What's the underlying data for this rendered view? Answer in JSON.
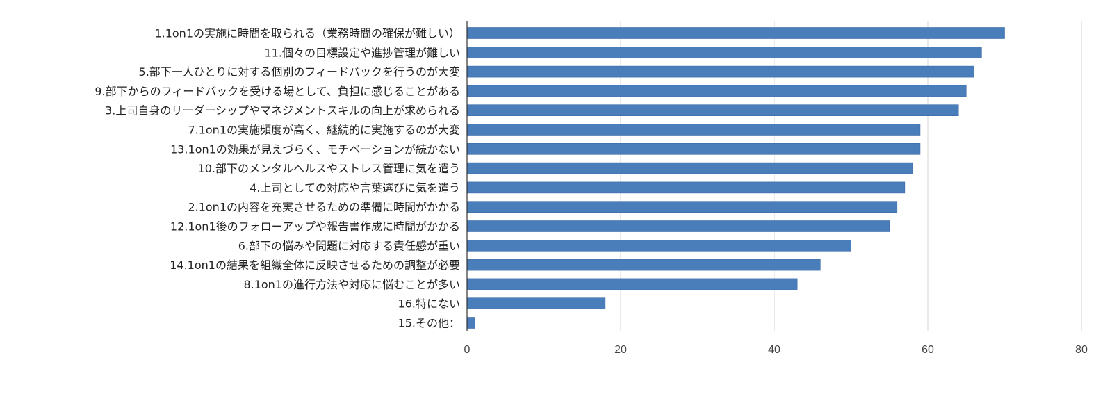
{
  "chart_data": {
    "type": "bar",
    "orientation": "horizontal",
    "categories": [
      "1.1on1の実施に時間を取られる（業務時間の確保が難しい）",
      "11.個々の目標設定や進捗管理が難しい",
      "5.部下一人ひとりに対する個別のフィードバックを行うのが大変",
      "9.部下からのフィードバックを受ける場として、負担に感じることがある",
      "3.上司自身のリーダーシップやマネジメントスキルの向上が求められる",
      "7.1on1の実施頻度が高く、継続的に実施するのが大変",
      "13.1on1の効果が見えづらく、モチベーションが続かない",
      "10.部下のメンタルヘルスやストレス管理に気を遣う",
      "4.上司としての対応や言葉選びに気を遣う",
      "2.1on1の内容を充実させるための準備に時間がかかる",
      "12.1on1後のフォローアップや報告書作成に時間がかかる",
      "6.部下の悩みや問題に対応する責任感が重い",
      "14.1on1の結果を組織全体に反映させるための調整が必要",
      "8.1on1の進行方法や対応に悩むことが多い",
      "16.特にない",
      "15.その他："
    ],
    "values": [
      70,
      67,
      66,
      65,
      64,
      59,
      59,
      58,
      57,
      56,
      55,
      50,
      46,
      43,
      18,
      1
    ],
    "xlim": [
      0,
      80
    ],
    "xticks": [
      0,
      20,
      40,
      60,
      80
    ],
    "xtick_labels": [
      "0",
      "20",
      "40",
      "60",
      "80"
    ],
    "grid": "vertical",
    "legend": "none",
    "bar_color": "#4a7ebb",
    "bar_edge_color": "#3a6aa6",
    "grid_color": "#d4d4d4",
    "axis_color": "#333333"
  }
}
